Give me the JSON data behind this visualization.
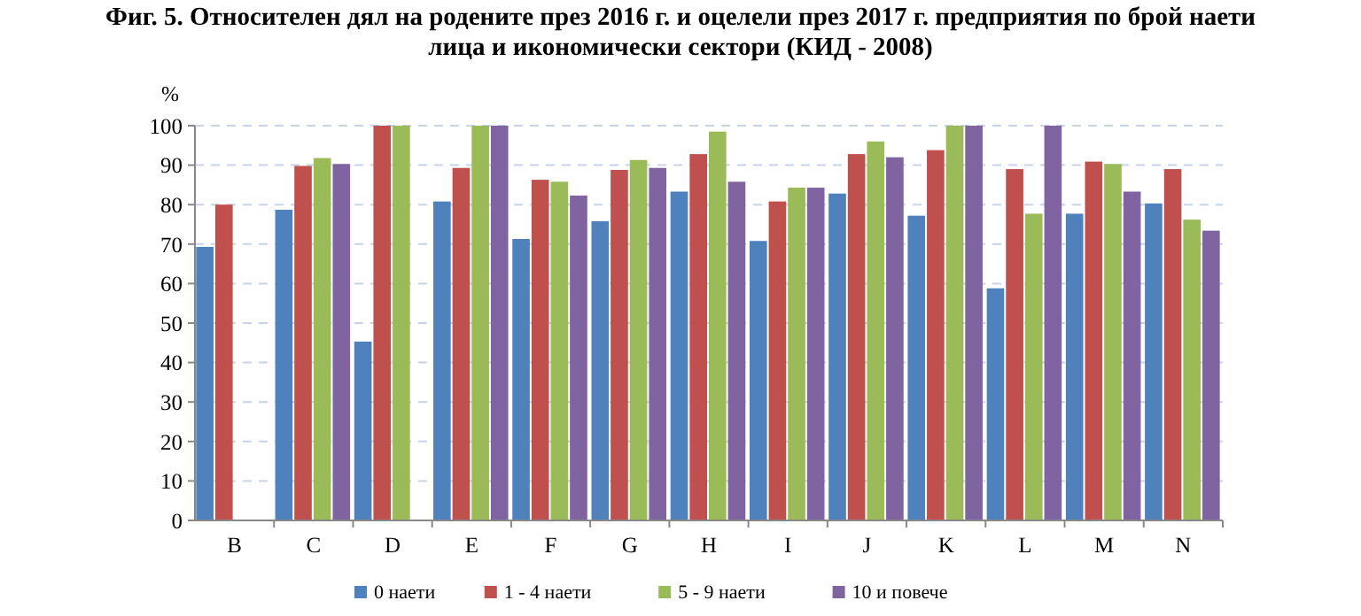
{
  "chart_data": {
    "type": "bar",
    "title": "Фиг. 5. Относителен дял на родените през 2016 г. и оцелели през 2017 г. предприятия по брой наети лица и икономически сектори (КИД - 2008)",
    "ylabel": "%",
    "categories": [
      "B",
      "C",
      "D",
      "E",
      "F",
      "G",
      "H",
      "I",
      "J",
      "K",
      "L",
      "M",
      "N"
    ],
    "series": [
      {
        "name": "0 наети",
        "color": "#4f81bd",
        "values": [
          69.3,
          78.7,
          45.3,
          80.8,
          71.3,
          75.8,
          83.3,
          70.8,
          82.8,
          77.2,
          58.8,
          77.7,
          80.3
        ]
      },
      {
        "name": "1 - 4 наети",
        "color": "#c0504d",
        "values": [
          80,
          89.8,
          100,
          89.3,
          86.3,
          88.8,
          92.8,
          80.8,
          92.8,
          93.8,
          89,
          90.9,
          89
        ]
      },
      {
        "name": "5 - 9 наети",
        "color": "#9bbb59",
        "values": [
          null,
          91.8,
          100,
          100,
          85.8,
          91.3,
          98.5,
          84.3,
          96,
          100,
          77.7,
          90.3,
          76.2
        ]
      },
      {
        "name": "10 и повече",
        "color": "#8064a2",
        "values": [
          null,
          90.3,
          null,
          100,
          82.3,
          89.3,
          85.8,
          84.3,
          92,
          100,
          100,
          83.3,
          73.4
        ]
      }
    ],
    "ylim": [
      0,
      100
    ],
    "yticks": [
      0,
      10,
      20,
      30,
      40,
      50,
      60,
      70,
      80,
      90,
      100
    ],
    "grid": "y",
    "legend": "bottom"
  }
}
